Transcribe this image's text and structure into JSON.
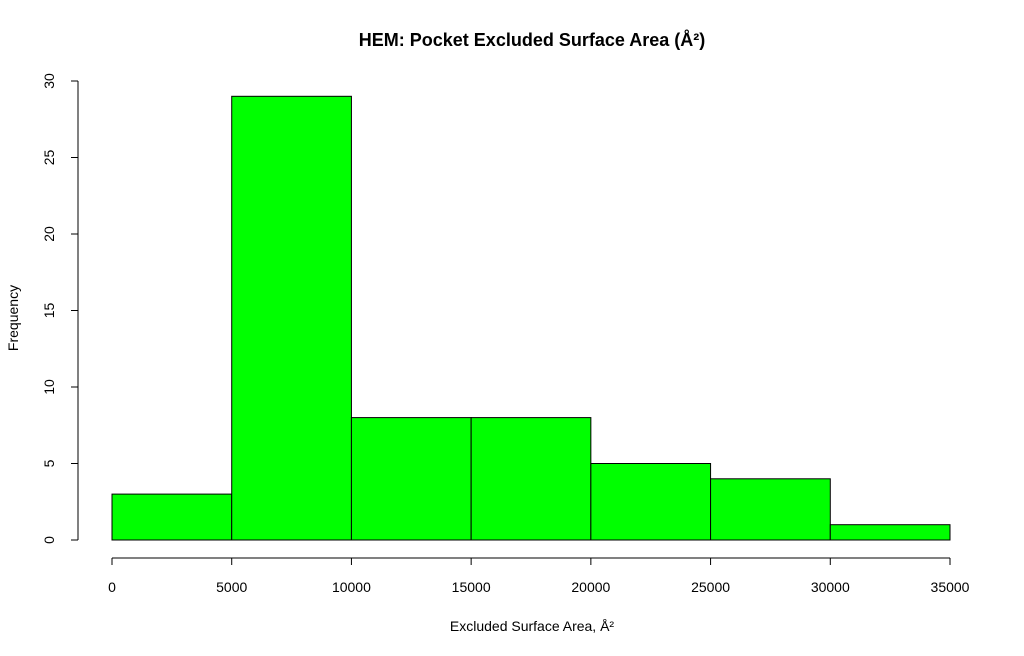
{
  "chart_data": {
    "type": "histogram",
    "title": "HEM: Pocket Excluded Surface Area (Å²)",
    "xlabel": "Excluded Surface Area, Å²",
    "ylabel": "Frequency",
    "bin_edges": [
      0,
      5000,
      10000,
      15000,
      20000,
      25000,
      30000,
      35000
    ],
    "values": [
      3,
      29,
      8,
      8,
      5,
      4,
      1
    ],
    "xlim": [
      0,
      35000
    ],
    "ylim": [
      0,
      30
    ],
    "x_ticks": [
      0,
      5000,
      10000,
      15000,
      20000,
      25000,
      30000,
      35000
    ],
    "x_tick_labels": [
      "0",
      "5000",
      "10000",
      "15000",
      "20000",
      "25000",
      "30000",
      "35000"
    ],
    "y_ticks": [
      0,
      5,
      10,
      15,
      20,
      25,
      30
    ],
    "y_tick_labels": [
      "0",
      "5",
      "10",
      "15",
      "20",
      "25",
      "30"
    ],
    "bar_color": "#00ff00",
    "grid": false,
    "legend": "none"
  }
}
